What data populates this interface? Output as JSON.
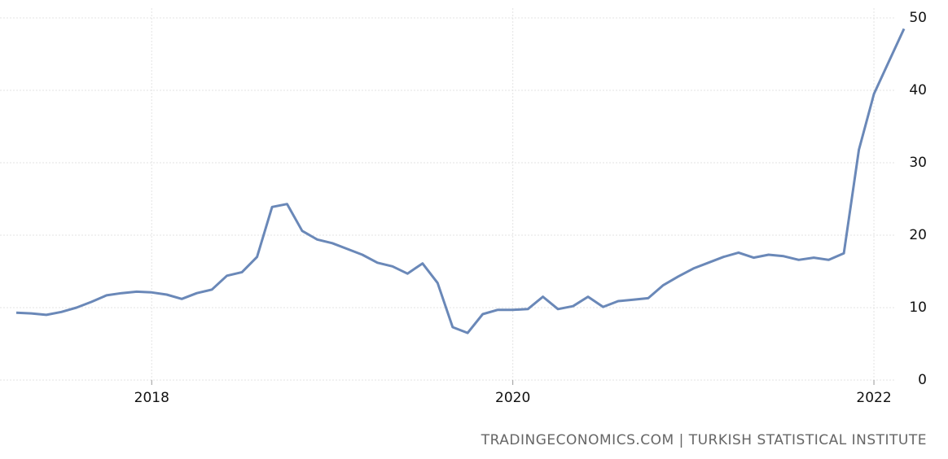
{
  "chart_data": {
    "type": "line",
    "categories": [
      null,
      null,
      null,
      null,
      null,
      null,
      null,
      null,
      null,
      "2018",
      null,
      null,
      null,
      null,
      null,
      null,
      null,
      null,
      null,
      null,
      null,
      null,
      null,
      null,
      null,
      null,
      null,
      null,
      null,
      null,
      null,
      null,
      null,
      "2020",
      null,
      null,
      null,
      null,
      null,
      null,
      null,
      null,
      null,
      null,
      null,
      null,
      null,
      null,
      null,
      null,
      null,
      null,
      null,
      null,
      null,
      null,
      null,
      "2022",
      null,
      null
    ],
    "series": [
      {
        "color": "#6a88b8",
        "values": [
          9.3,
          9.2,
          9.0,
          9.4,
          10.0,
          10.8,
          11.7,
          12.0,
          12.2,
          12.1,
          11.8,
          11.2,
          12.0,
          12.5,
          14.4,
          14.9,
          17.0,
          23.9,
          24.3,
          20.6,
          19.4,
          18.9,
          18.1,
          17.3,
          16.2,
          15.7,
          14.7,
          16.1,
          13.4,
          7.3,
          6.5,
          9.1,
          9.7,
          9.7,
          9.8,
          11.5,
          9.8,
          10.2,
          11.5,
          10.1,
          10.9,
          11.1,
          11.3,
          13.1,
          14.3,
          15.4,
          16.2,
          17.0,
          17.6,
          16.9,
          17.3,
          17.1,
          16.6,
          16.9,
          16.6,
          17.5,
          31.8,
          39.5,
          44.0,
          48.5
        ]
      }
    ],
    "ylim": [
      0,
      50
    ],
    "yticks": [
      0,
      10,
      20,
      30,
      40,
      50
    ],
    "grid": true,
    "source": "TRADINGECONOMICS.COM | TURKISH STATISTICAL INSTITUTE"
  }
}
